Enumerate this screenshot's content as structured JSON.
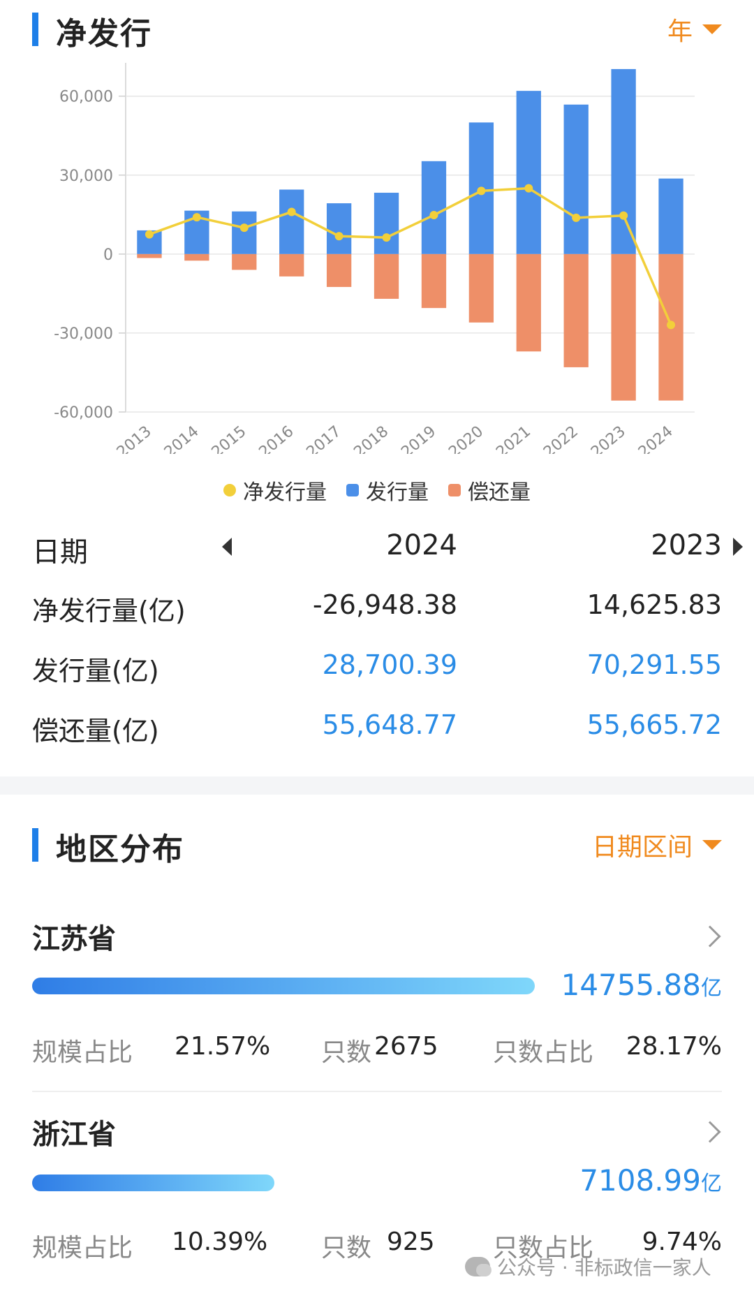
{
  "section1": {
    "title": "净发行",
    "filter": "年"
  },
  "chart_data": {
    "type": "bar",
    "categories": [
      "2013",
      "2014",
      "2015",
      "2016",
      "2017",
      "2018",
      "2019",
      "2020",
      "2021",
      "2022",
      "2023",
      "2024"
    ],
    "ylim": [
      -60000,
      70000
    ],
    "yticks": [
      60000,
      30000,
      0,
      -30000,
      -60000
    ],
    "ytick_labels": [
      "60,000",
      "30,000",
      "0",
      "-30,000",
      "-60,000"
    ],
    "series": [
      {
        "name": "发行量",
        "kind": "bar",
        "color": "#4b8fe8",
        "values": [
          9000,
          16500,
          16200,
          24500,
          19300,
          23300,
          35300,
          50000,
          62000,
          56800,
          70291.55,
          28700.39
        ]
      },
      {
        "name": "偿还量",
        "kind": "bar",
        "color": "#ee8f68",
        "values": [
          -1500,
          -2500,
          -6000,
          -8500,
          -12500,
          -17000,
          -20500,
          -26000,
          -37000,
          -43000,
          -55665.72,
          -55648.77
        ]
      },
      {
        "name": "净发行量",
        "kind": "line",
        "color": "#f2cf3a",
        "values": [
          7500,
          14000,
          10000,
          16000,
          6800,
          6300,
          14800,
          24000,
          25000,
          13800,
          14625.83,
          -26948.38
        ]
      }
    ],
    "grid": true,
    "legend": "bottom"
  },
  "legend": [
    {
      "label": "净发行量",
      "color": "#f2cf3a",
      "shape": "dot"
    },
    {
      "label": "发行量",
      "color": "#4b8fe8",
      "shape": "square"
    },
    {
      "label": "偿还量",
      "color": "#ee8f68",
      "shape": "square"
    }
  ],
  "table": {
    "header": {
      "label": "日期",
      "col1": "2024",
      "col2": "2023"
    },
    "rows": [
      {
        "label": "净发行量(亿)",
        "col1": "-26,948.38",
        "col2": "14,625.83",
        "link": false
      },
      {
        "label": "发行量(亿)",
        "col1": "28,700.39",
        "col2": "70,291.55",
        "link": true
      },
      {
        "label": "偿还量(亿)",
        "col1": "55,648.77",
        "col2": "55,665.72",
        "link": true
      }
    ]
  },
  "section2": {
    "title": "地区分布",
    "filter": "日期区间"
  },
  "regions": [
    {
      "name": "江苏省",
      "amount": "14755.88",
      "unit": "亿",
      "bar_fraction": 1.0,
      "scale_label": "规模占比",
      "scale_value": "21.57%",
      "count_label": "只数",
      "count_value": "2675",
      "count_ratio_label": "只数占比",
      "count_ratio_value": "28.17%"
    },
    {
      "name": "浙江省",
      "amount": "7108.99",
      "unit": "亿",
      "bar_fraction": 0.4818,
      "scale_label": "规模占比",
      "scale_value": "10.39%",
      "count_label": "只数",
      "count_value": "925",
      "count_ratio_label": "只数占比",
      "count_ratio_value": "9.74%"
    }
  ],
  "watermark": "公众号 · 非标政信一家人"
}
